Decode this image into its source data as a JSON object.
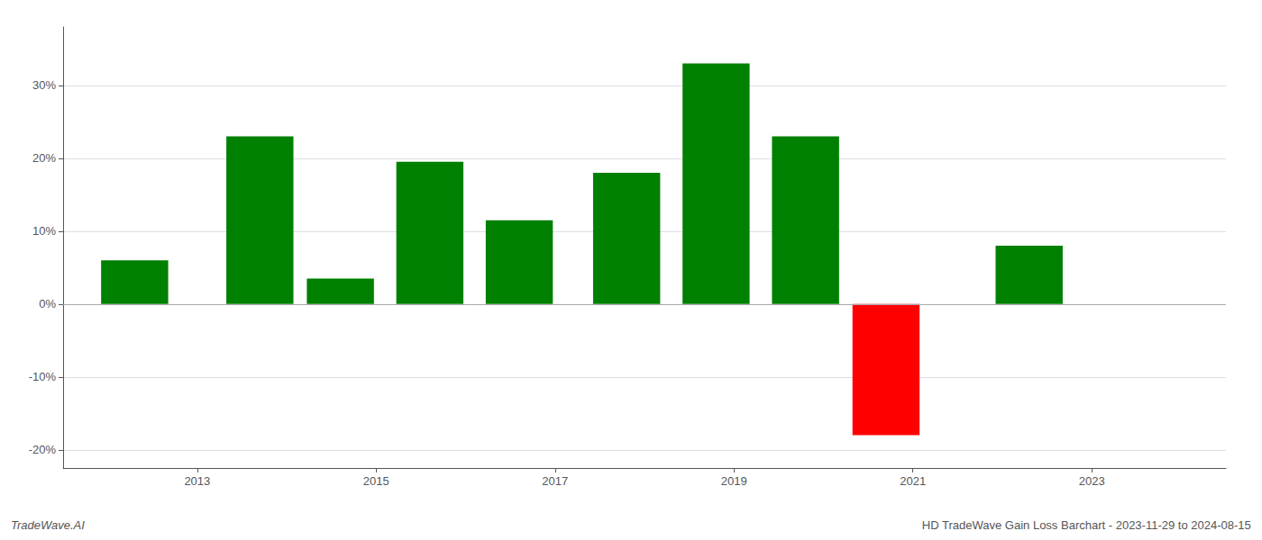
{
  "chart_data": {
    "type": "bar",
    "x": [
      2012.3,
      2013.7,
      2014.6,
      2015.6,
      2016.6,
      2017.8,
      2018.8,
      2019.8,
      2020.7,
      2022.3
    ],
    "values": [
      0.06,
      0.23,
      0.035,
      0.195,
      0.115,
      0.18,
      0.33,
      0.23,
      -0.18,
      0.08
    ],
    "colors": [
      "#008000",
      "#008000",
      "#008000",
      "#008000",
      "#008000",
      "#008000",
      "#008000",
      "#008000",
      "#ff0000",
      "#008000"
    ],
    "xlim": [
      2011.5,
      2024.5
    ],
    "xticks": [
      2013,
      2015,
      2017,
      2019,
      2021,
      2023
    ],
    "ylim": [
      -0.225,
      0.38
    ],
    "yticks": [
      {
        "value": -0.2,
        "label": "-20%"
      },
      {
        "value": -0.1,
        "label": "-10%"
      },
      {
        "value": 0,
        "label": "0%"
      },
      {
        "value": 0.1,
        "label": "10%"
      },
      {
        "value": 0.2,
        "label": "20%"
      },
      {
        "value": 0.3,
        "label": "30%"
      }
    ],
    "grid": true,
    "annotations": [
      "TradeWave.AI",
      "HD TradeWave Gain Loss Barchart - 2023-11-29 to 2024-08-15"
    ]
  }
}
